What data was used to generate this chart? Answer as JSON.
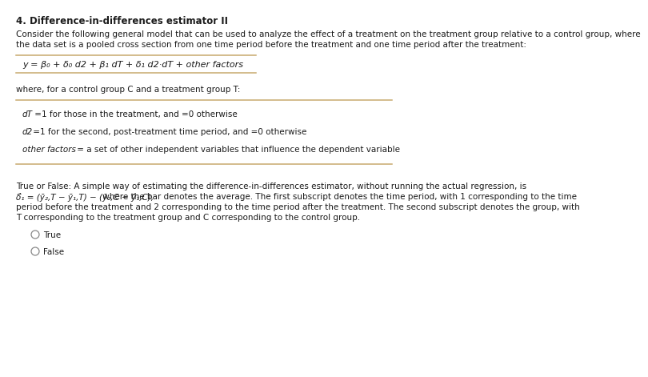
{
  "title": "4. Difference-in-differences estimator II",
  "bg_color": "#ffffff",
  "box_line_color": "#c8a96e",
  "intro_line1": "Consider the following general model that can be used to analyze the effect of a treatment on the treatment group relative to a control group, where",
  "intro_line2": "the data set is a pooled cross section from one time period before the treatment and one time period after the treatment:",
  "equation": "y = β₀ + δ₀ d2 + β₁ dT + δ₁ d2·dT + other factors",
  "where_text": "where, for a control group C and a treatment group T:",
  "def1_italic": "dT",
  "def1_rest": " =1 for those in the treatment, and =0 otherwise",
  "def2_italic": "d2",
  "def2_rest": " =1 for the second, post-treatment time period, and =0 otherwise",
  "def3_italic": "other factors",
  "def3_rest": " = a set of other independent variables that influence the dependent variable",
  "tf_intro": "True or False: A simple way of estimating the difference-in-differences estimator, without running the actual regression, is",
  "est_italic": "δ̂₁ = (ȳ₂,T − ȳ₁,T) − (ȳ₂,C − ȳ₁,C),",
  "est_rest": " where the bar denotes the average. The first subscript denotes the time period, with 1 corresponding to the time",
  "cont1": "period before the treatment and 2 corresponding to the time period after the treatment. The second subscript denotes the group, with",
  "cont2": "T corresponding to the treatment group and C corresponding to the control group.",
  "cont2_italic_end": "T",
  "cont2_italic_C": "C",
  "option_true": "True",
  "option_false": "False",
  "fs_title": 8.5,
  "fs_body": 7.5,
  "fs_eq": 8.0,
  "fs_def": 7.5,
  "text_color": "#1a1a1a"
}
